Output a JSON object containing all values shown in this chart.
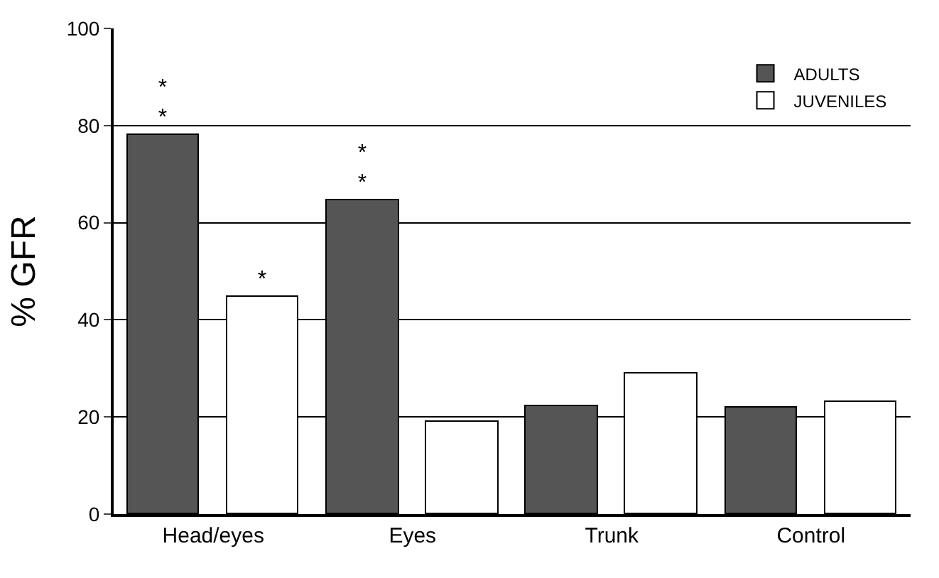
{
  "chart_data": {
    "type": "bar",
    "ylabel": "% GFR",
    "categories": [
      "Head/eyes",
      "Eyes",
      "Trunk",
      "Control"
    ],
    "series": [
      {
        "name": "ADULTS",
        "color": "#555555",
        "values": [
          78,
          64.5,
          22.3,
          22
        ],
        "value_labels": [
          "*\n*",
          "*\n*",
          null,
          null
        ]
      },
      {
        "name": "JUVENILES",
        "color": "#ffffff",
        "values": [
          44.6,
          19,
          29,
          23
        ],
        "value_labels": [
          "*",
          null,
          null,
          null
        ]
      }
    ],
    "ylim": [
      0,
      100
    ],
    "yticks": [
      0,
      20,
      40,
      60,
      80,
      100
    ],
    "grid": "y",
    "legend": "top right"
  }
}
